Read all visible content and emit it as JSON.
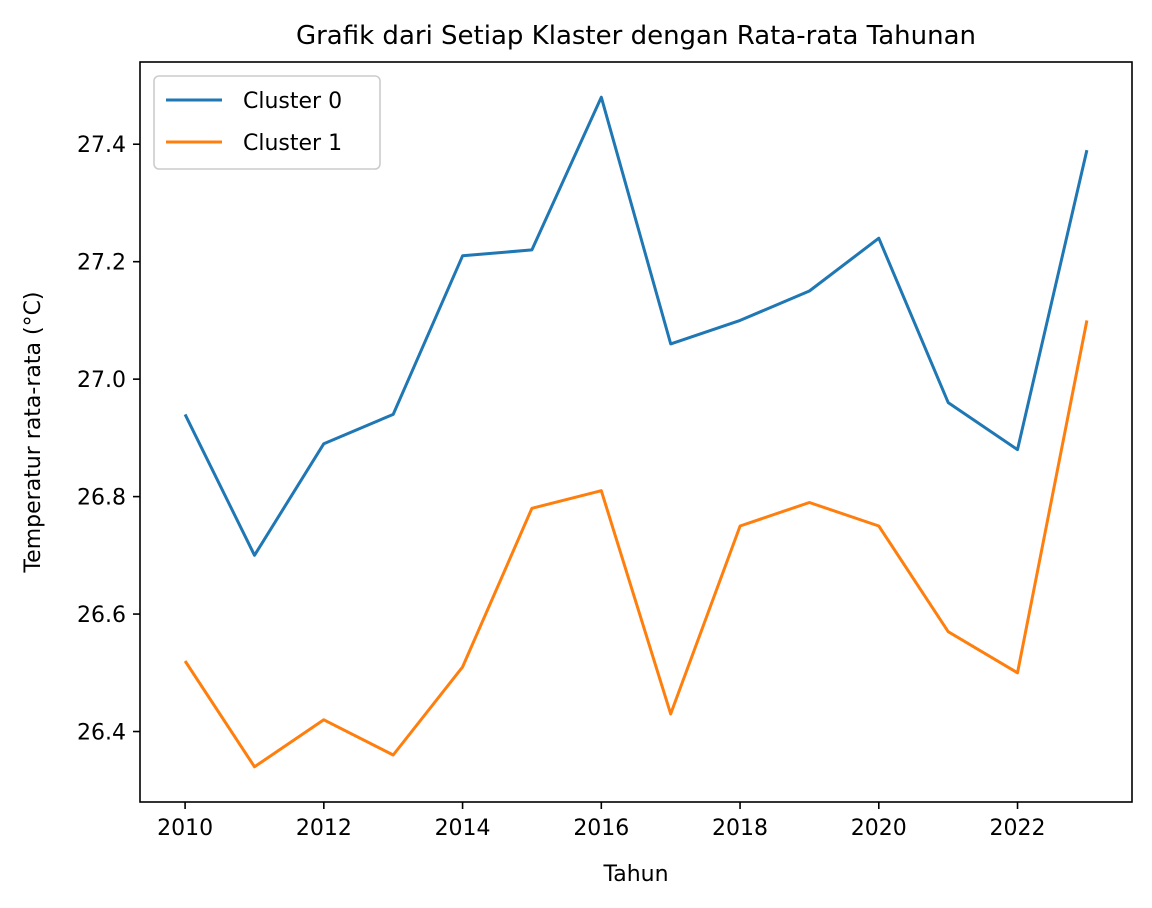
{
  "chart_data": {
    "type": "line",
    "title": "Grafik dari Setiap Klaster dengan Rata-rata Tahunan",
    "xlabel": "Tahun",
    "ylabel": "Temperatur rata-rata (°C)",
    "x": [
      2010,
      2011,
      2012,
      2013,
      2014,
      2015,
      2016,
      2017,
      2018,
      2019,
      2020,
      2021,
      2022,
      2023
    ],
    "xlim": [
      2009.35,
      2023.65
    ],
    "ylim": [
      26.28,
      27.54
    ],
    "xticks": [
      "2010",
      "2012",
      "2014",
      "2016",
      "2018",
      "2020",
      "2022"
    ],
    "yticks": [
      "26.4",
      "26.6",
      "26.8",
      "27.0",
      "27.2",
      "27.4"
    ],
    "grid": false,
    "legend_position": "top-left",
    "series": [
      {
        "name": "Cluster 0",
        "color": "#1f77b4",
        "values": [
          26.94,
          26.7,
          26.89,
          26.94,
          27.21,
          27.22,
          27.48,
          27.06,
          27.1,
          27.15,
          27.24,
          26.96,
          26.88,
          27.39
        ]
      },
      {
        "name": "Cluster 1",
        "color": "#ff7f0e",
        "values": [
          26.52,
          26.34,
          26.42,
          26.36,
          26.51,
          26.78,
          26.81,
          26.43,
          26.75,
          26.79,
          26.75,
          26.57,
          26.5,
          27.1
        ]
      }
    ]
  }
}
